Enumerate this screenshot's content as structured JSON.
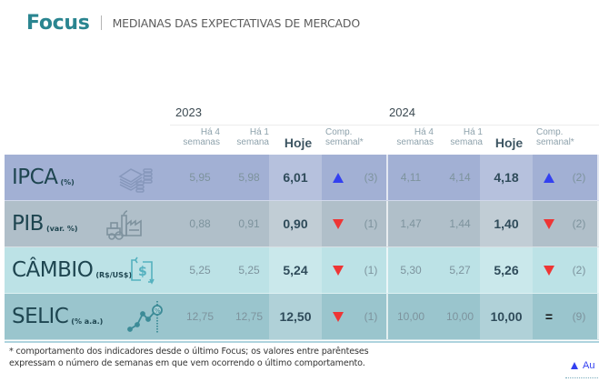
{
  "header": {
    "brand": "Focus",
    "subtitle": "MEDIANAS DAS EXPECTATIVAS DE MERCADO"
  },
  "years": [
    "2023",
    "2024"
  ],
  "column_headers": {
    "weeks4": [
      "Há 4",
      "semanas"
    ],
    "week1": [
      "Há 1",
      "semana"
    ],
    "today": "Hoje",
    "comp": [
      "Comp.",
      "semanal*"
    ]
  },
  "colors": {
    "ipca": "#a2b0d4",
    "pib": "#b0bfc9",
    "cambio": "#bce2e6",
    "selic": "#9ac5cd",
    "up": "#3340f0",
    "down": "#ee3535",
    "brand": "#2a8590"
  },
  "rows": [
    {
      "name": "IPCA",
      "unit": "(%)",
      "icon": "money-coins-icon",
      "y2023": {
        "weeks4": "5,95",
        "week1": "5,98",
        "today": "6,01",
        "trend": "up",
        "weeks": "(3)"
      },
      "y2024": {
        "weeks4": "4,11",
        "week1": "4,14",
        "today": "4,18",
        "trend": "up",
        "weeks": "(2)"
      }
    },
    {
      "name": "PIB",
      "unit": "(var. %)",
      "icon": "tractor-factory-icon",
      "y2023": {
        "weeks4": "0,88",
        "week1": "0,91",
        "today": "0,90",
        "trend": "down",
        "weeks": "(1)"
      },
      "y2024": {
        "weeks4": "1,47",
        "week1": "1,44",
        "today": "1,40",
        "trend": "down",
        "weeks": "(2)"
      }
    },
    {
      "name": "CÂMBIO",
      "unit": "(R$/US$)",
      "icon": "currency-exchange-icon",
      "y2023": {
        "weeks4": "5,25",
        "week1": "5,25",
        "today": "5,24",
        "trend": "down",
        "weeks": "(1)"
      },
      "y2024": {
        "weeks4": "5,30",
        "week1": "5,27",
        "today": "5,26",
        "trend": "down",
        "weeks": "(2)"
      }
    },
    {
      "name": "SELIC",
      "unit": "(% a.a.)",
      "icon": "rate-chart-icon",
      "y2023": {
        "weeks4": "12,75",
        "week1": "12,75",
        "today": "12,50",
        "trend": "down",
        "weeks": "(1)"
      },
      "y2024": {
        "weeks4": "10,00",
        "week1": "10,00",
        "today": "10,00",
        "trend": "equal",
        "weeks": "(9)"
      }
    }
  ],
  "equal_symbol": "=",
  "footnote": "* comportamento dos indicadores desde o último Focus; os valores entre parênteses expressam o número de semanas em que vem ocorrendo o último comportamento.",
  "legend": {
    "up_label": "Au"
  }
}
